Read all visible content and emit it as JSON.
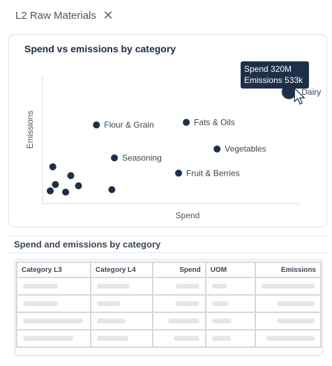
{
  "tab": {
    "title": "L2 Raw Materials",
    "close_label": "✕"
  },
  "chart_data": {
    "type": "scatter",
    "title": "Spend vs emissions by category",
    "xlabel": "Spend",
    "ylabel": "Emissions",
    "xlim": [
      0,
      100
    ],
    "ylim": [
      0,
      100
    ],
    "points": [
      {
        "label": "Dairy",
        "x": 96,
        "y": 88,
        "highlight": true
      },
      {
        "label": "Flour & Grain",
        "x": 21,
        "y": 62
      },
      {
        "label": "Fats & Oils",
        "x": 56,
        "y": 64
      },
      {
        "label": "Vegetables",
        "x": 68,
        "y": 43
      },
      {
        "label": "Seasoning",
        "x": 28,
        "y": 36
      },
      {
        "label": "Fruit & Berries",
        "x": 53,
        "y": 24
      },
      {
        "label": "",
        "x": 4,
        "y": 29
      },
      {
        "label": "",
        "x": 11,
        "y": 22
      },
      {
        "label": "",
        "x": 5,
        "y": 15
      },
      {
        "label": "",
        "x": 14,
        "y": 14
      },
      {
        "label": "",
        "x": 3,
        "y": 10
      },
      {
        "label": "",
        "x": 9,
        "y": 9
      },
      {
        "label": "",
        "x": 27,
        "y": 11
      }
    ],
    "tooltip": {
      "line1": "Spend 320M",
      "line2": "Emissions 533k"
    }
  },
  "table": {
    "title": "Spend and emissions by category",
    "columns": [
      "Category L3",
      "Category L4",
      "Spend",
      "UOM",
      "Emissions"
    ],
    "rows": [
      [
        0.55,
        0.63,
        0.57,
        0.38,
        0.9
      ],
      [
        0.55,
        0.44,
        0.58,
        0.41,
        0.64
      ],
      [
        0.95,
        0.55,
        0.75,
        0.5,
        0.64
      ],
      [
        0.8,
        0.61,
        0.62,
        0.48,
        0.82
      ]
    ]
  },
  "colors": {
    "marker": "#1e3049",
    "axis": "#d9dde2",
    "card_border": "#dcdfe4"
  }
}
